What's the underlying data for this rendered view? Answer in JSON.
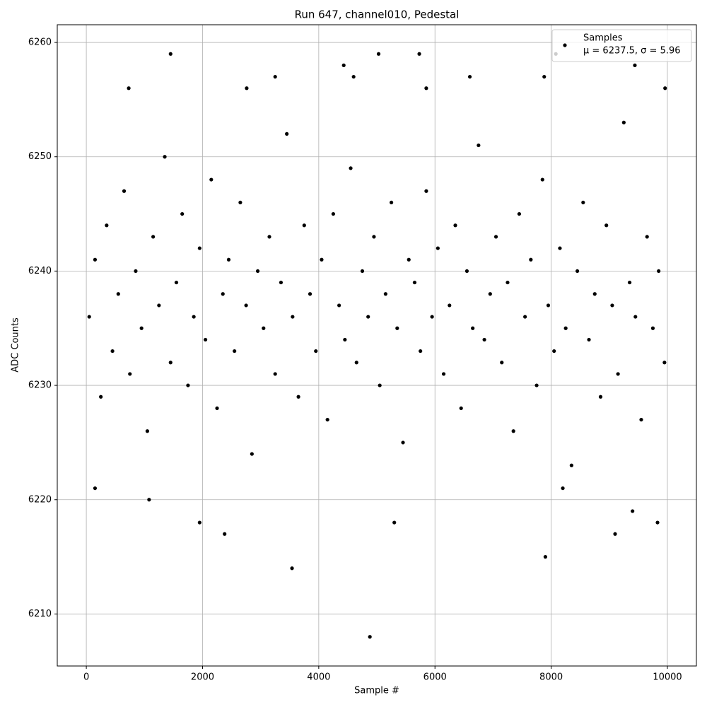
{
  "chart_data": {
    "type": "scatter",
    "title": "Run 647, channel010, Pedestal",
    "x_label": "Sample #",
    "y_label": "ADC Counts",
    "xlim": [
      -500,
      10499
    ],
    "ylim": [
      6205.45,
      6261.55
    ],
    "xticks": [
      0,
      2000,
      4000,
      6000,
      8000,
      10000
    ],
    "yticks": [
      6210,
      6220,
      6230,
      6240,
      6250,
      6260
    ],
    "grid": true,
    "legend_position": "upper right",
    "legend_note": "μ = 6237.5, σ = 5.96",
    "series": [
      {
        "name": "Samples",
        "color": "#000000",
        "x": [
          50,
          150,
          250,
          350,
          450,
          550,
          650,
          750,
          850,
          950,
          1050,
          1150,
          1250,
          1350,
          1450,
          1550,
          1650,
          1750,
          1850,
          1950,
          2050,
          2150,
          2250,
          2350,
          2450,
          2550,
          2650,
          2750,
          2850,
          2950,
          3050,
          3150,
          3250,
          3350,
          3450,
          3550,
          3650,
          3750,
          3850,
          3950,
          4050,
          4150,
          4250,
          4350,
          4450,
          4550,
          4650,
          4750,
          4850,
          4950,
          5050,
          5150,
          5250,
          5350,
          5450,
          5550,
          5650,
          5750,
          5850,
          5950,
          6050,
          6150,
          6250,
          6350,
          6450,
          6550,
          6650,
          6750,
          6850,
          6950,
          7050,
          7150,
          7250,
          7350,
          7450,
          7550,
          7650,
          7750,
          7850,
          7950,
          8050,
          8150,
          8250,
          8350,
          8450,
          8550,
          8650,
          8750,
          8850,
          8950,
          9050,
          9150,
          9250,
          9350,
          9450,
          9550,
          9650,
          9750,
          9850,
          9950,
          1080,
          1450,
          1950,
          2380,
          3540,
          4880,
          5300,
          5030,
          5730,
          7900,
          8080,
          9100,
          9400,
          9830,
          9440,
          4430,
          3250,
          4600,
          6600,
          7880,
          8200,
          150,
          730,
          2760,
          5850,
          9960
        ],
        "values": [
          6236,
          6241,
          6229,
          6244,
          6233,
          6238,
          6247,
          6231,
          6240,
          6235,
          6226,
          6243,
          6237,
          6250,
          6232,
          6239,
          6245,
          6230,
          6236,
          6242,
          6234,
          6248,
          6228,
          6238,
          6241,
          6233,
          6246,
          6237,
          6224,
          6240,
          6235,
          6243,
          6231,
          6239,
          6252,
          6236,
          6229,
          6244,
          6238,
          6233,
          6241,
          6227,
          6245,
          6237,
          6234,
          6249,
          6232,
          6240,
          6236,
          6243,
          6230,
          6238,
          6246,
          6235,
          6225,
          6241,
          6239,
          6233,
          6247,
          6236,
          6242,
          6231,
          6237,
          6244,
          6228,
          6240,
          6235,
          6251,
          6234,
          6238,
          6243,
          6232,
          6239,
          6226,
          6245,
          6236,
          6241,
          6230,
          6248,
          6237,
          6233,
          6242,
          6235,
          6223,
          6240,
          6246,
          6234,
          6238,
          6229,
          6244,
          6237,
          6231,
          6253,
          6239,
          6236,
          6227,
          6243,
          6235,
          6240,
          6232,
          6220,
          6259,
          6218,
          6217,
          6214,
          6208,
          6218,
          6259,
          6259,
          6215,
          6259,
          6217,
          6219,
          6218,
          6258,
          6258,
          6257,
          6257,
          6257,
          6257,
          6221,
          6221,
          6256,
          6256,
          6256,
          6256
        ]
      }
    ]
  }
}
